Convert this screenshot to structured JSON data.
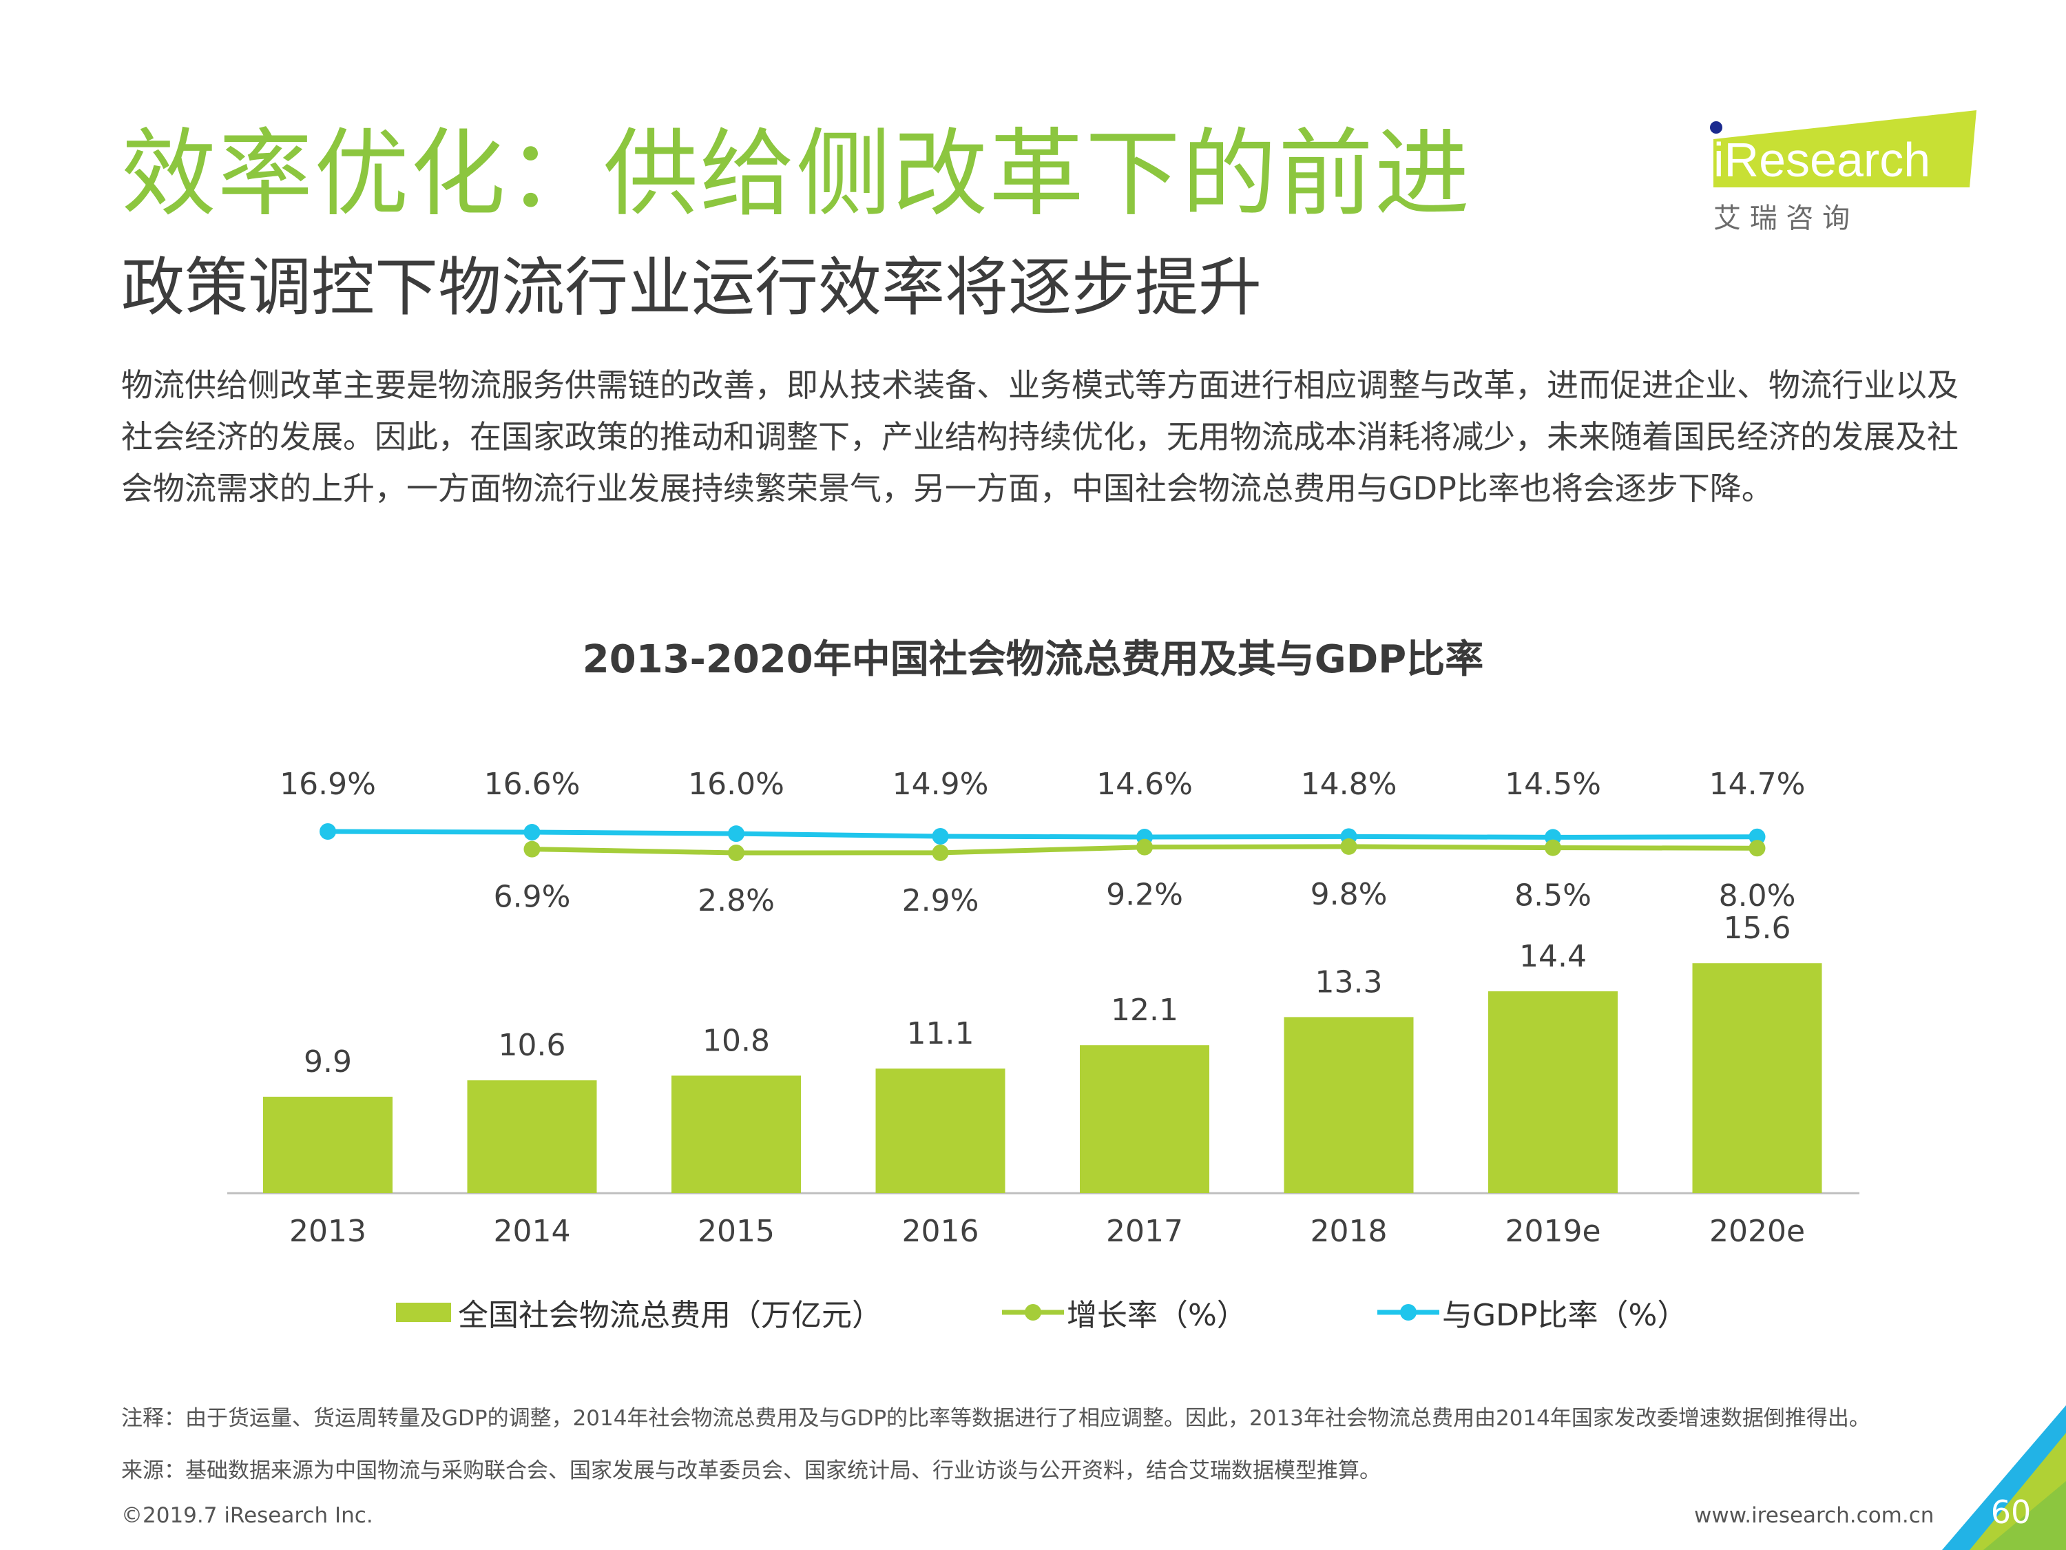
{
  "header": {
    "title": "效率优化：供给侧改革下的前进",
    "subtitle": "政策调控下物流行业运行效率将逐步提升",
    "intro": "物流供给侧改革主要是物流服务供需链的改善，即从技术装备、业务模式等方面进行相应调整与改革，进而促进企业、物流行业以及社会经济的发展。因此，在国家政策的推动和调整下，产业结构持续优化，无用物流成本消耗将减少，未来随着国民经济的发展及社会物流需求的上升，一方面物流行业发展持续繁荣景气，另一方面，中国社会物流总费用与GDP比率也将会逐步下降。"
  },
  "logo": {
    "brand": "iResearch",
    "tagline": "艾 瑞 咨 询"
  },
  "chart_data": {
    "type": "bar",
    "title": "2013-2020年中国社会物流总费用及其与GDP比率",
    "categories": [
      "2013",
      "2014",
      "2015",
      "2016",
      "2017",
      "2018",
      "2019e",
      "2020e"
    ],
    "series": [
      {
        "name": "全国社会物流总费用（万亿元）",
        "type": "bar",
        "color": "#b0d135",
        "values": [
          9.9,
          10.6,
          10.8,
          11.1,
          12.1,
          13.3,
          14.4,
          15.6
        ],
        "labels": [
          "9.9",
          "10.6",
          "10.8",
          "11.1",
          "12.1",
          "13.3",
          "14.4",
          "15.6"
        ]
      },
      {
        "name": "增长率（%）",
        "type": "line",
        "color": "#a5cd39",
        "values": [
          null,
          6.9,
          2.8,
          2.9,
          9.2,
          9.8,
          8.5,
          8.0
        ],
        "labels": [
          "",
          "6.9%",
          "2.8%",
          "2.9%",
          "9.2%",
          "9.8%",
          "8.5%",
          "8.0%"
        ]
      },
      {
        "name": "与GDP比率（%）",
        "type": "line",
        "color": "#1fc5ec",
        "values": [
          16.9,
          16.6,
          16.0,
          14.9,
          14.6,
          14.8,
          14.5,
          14.7
        ],
        "labels": [
          "16.9%",
          "16.6%",
          "16.0%",
          "14.9%",
          "14.6%",
          "14.8%",
          "14.5%",
          "14.7%"
        ]
      }
    ],
    "legend_position": "bottom",
    "grid": false
  },
  "notes": {
    "note": "注释：由于货运量、货运周转量及GDP的调整，2014年社会物流总费用及与GDP的比率等数据进行了相应调整。因此，2013年社会物流总费用由2014年国家发改委增速数据倒推得出。",
    "source": "来源：基础数据来源为中国物流与采购联合会、国家发展与改革委员会、国家统计局、行业访谈与公开资料，结合艾瑞数据模型推算。"
  },
  "footer": {
    "copyright": "©2019.7 iResearch Inc.",
    "website": "www.iresearch.com.cn",
    "page": "60"
  },
  "colors": {
    "title_green": "#8cc63f",
    "bar_green": "#b0d135",
    "line_green": "#a5cd39",
    "line_blue": "#1fc5ec"
  }
}
